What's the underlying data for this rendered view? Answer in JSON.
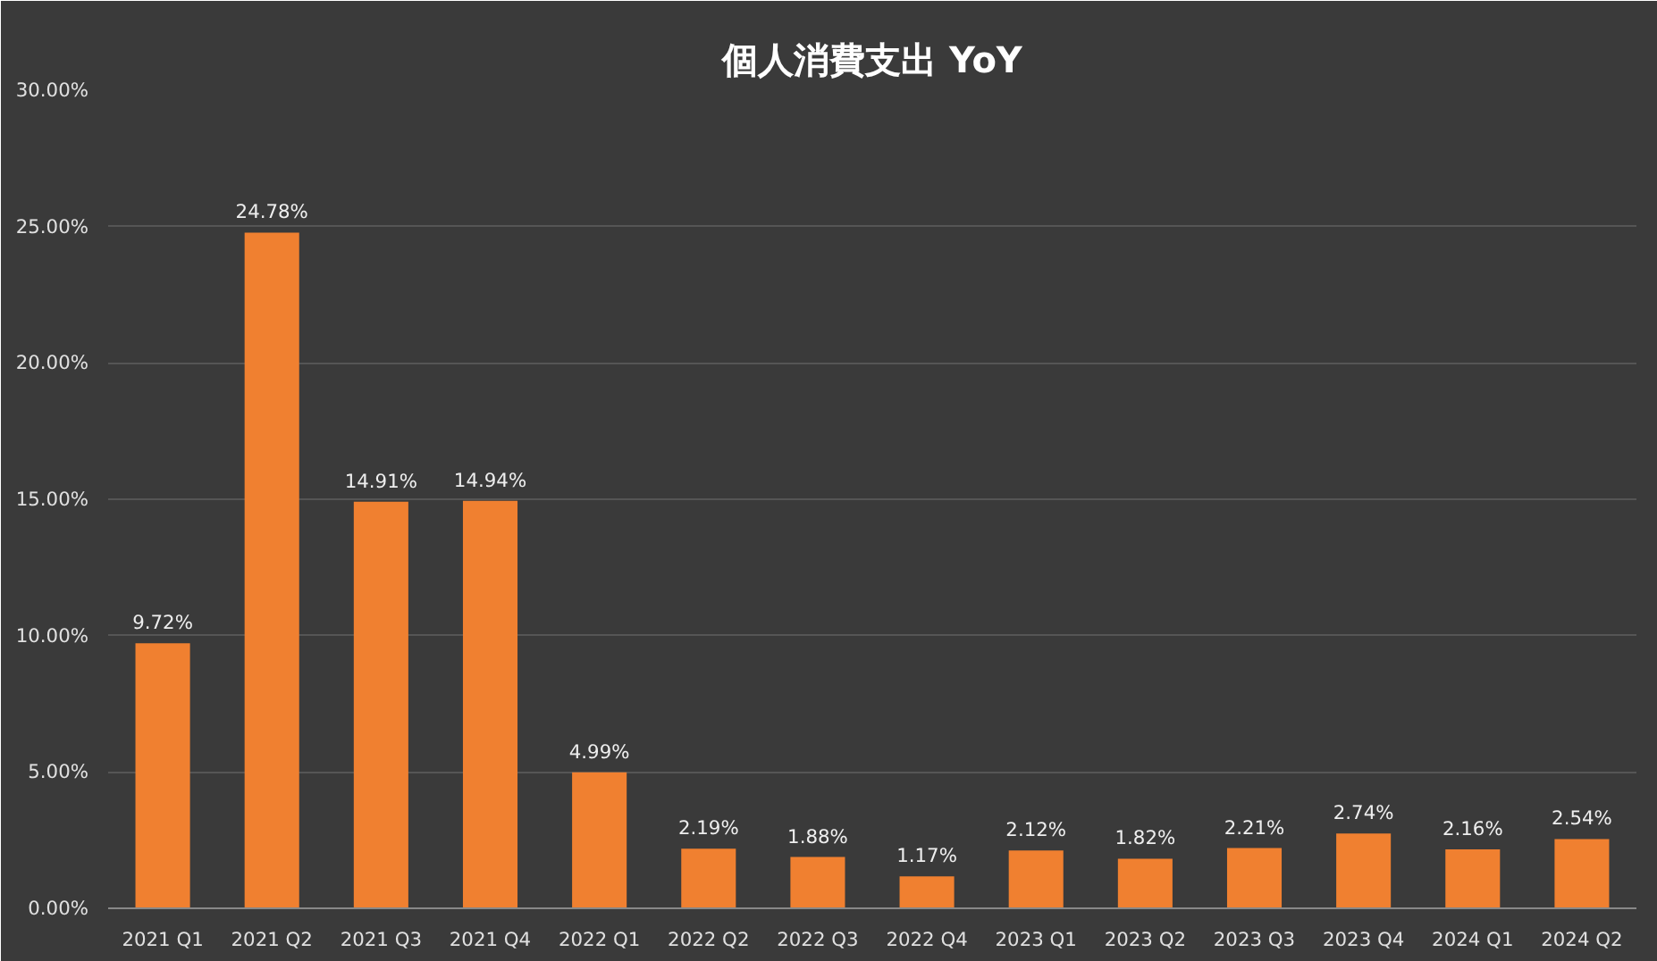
{
  "chart_data": {
    "type": "bar",
    "title": "個人消費支出 YoY",
    "categories": [
      "2021 Q1",
      "2021 Q2",
      "2021 Q3",
      "2021 Q4",
      "2022 Q1",
      "2022 Q2",
      "2022 Q3",
      "2022 Q4",
      "2023 Q1",
      "2023 Q2",
      "2023 Q3",
      "2023 Q4",
      "2024 Q1",
      "2024 Q2"
    ],
    "values": [
      9.72,
      24.78,
      14.91,
      14.94,
      4.99,
      2.19,
      1.88,
      1.17,
      2.12,
      1.82,
      2.21,
      2.74,
      2.16,
      2.54
    ],
    "value_labels": [
      "9.72%",
      "24.78%",
      "14.91%",
      "14.94%",
      "4.99%",
      "2.19%",
      "1.88%",
      "1.17%",
      "2.12%",
      "1.82%",
      "2.21%",
      "2.74%",
      "2.16%",
      "2.54%"
    ],
    "color": "#f08030",
    "ylim": [
      0,
      30
    ],
    "yticks": [
      {
        "value": 0,
        "label": "0.00%"
      },
      {
        "value": 5,
        "label": "5.00%"
      },
      {
        "value": 10,
        "label": "10.00%"
      },
      {
        "value": 15,
        "label": "15.00%"
      },
      {
        "value": 20,
        "label": "20.00%"
      },
      {
        "value": 25,
        "label": "25.00%"
      },
      {
        "value": 30,
        "label": "30.00%"
      }
    ],
    "grid": "y"
  }
}
